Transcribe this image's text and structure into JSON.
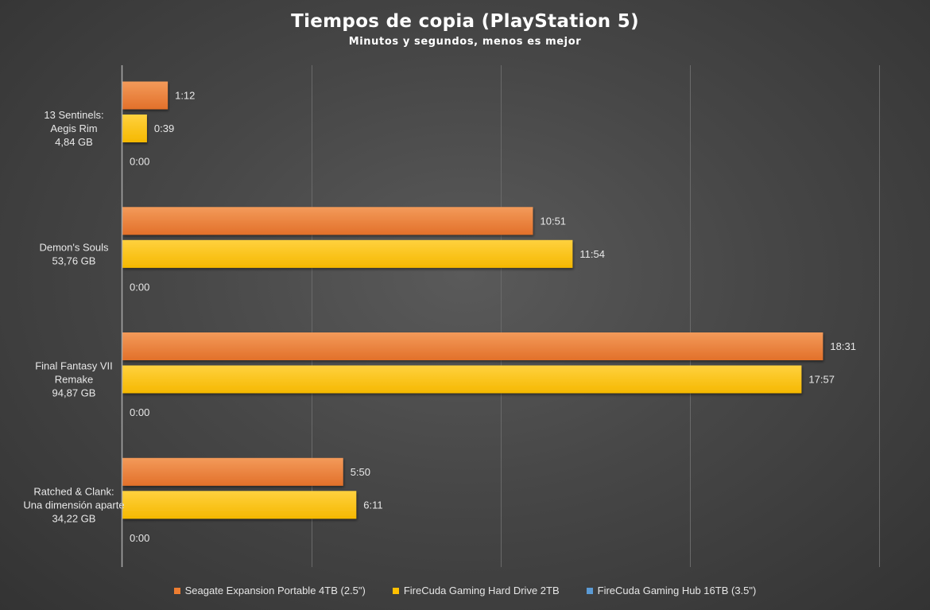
{
  "chart_data": {
    "type": "bar",
    "orientation": "horizontal",
    "title": "Tiempos de copia (PlayStation 5)",
    "subtitle": "Minutos y segundos, menos es mejor",
    "value_unit": "seconds",
    "categories": [
      [
        "13 Sentinels:",
        "Aegis Rim",
        "4,84 GB"
      ],
      [
        "Demon's Souls",
        "53,76 GB"
      ],
      [
        "Final Fantasy VII",
        "Remake",
        "94,87 GB"
      ],
      [
        "Ratched & Clank:",
        "Una dimensión aparte",
        "34,22 GB"
      ]
    ],
    "series": [
      {
        "name": "Seagate Expansion Portable 4TB (2.5\")",
        "color": "#ed7d31",
        "values": [
          72,
          651,
          1111,
          350
        ],
        "labels": [
          "1:12",
          "10:51",
          "18:31",
          "5:50"
        ]
      },
      {
        "name": "FireCuda Gaming Hard Drive 2TB",
        "color": "#ffc000",
        "values": [
          39,
          714,
          1077,
          371
        ],
        "labels": [
          "0:39",
          "11:54",
          "17:57",
          "6:11"
        ]
      },
      {
        "name": "FireCuda Gaming Hub 16TB (3.5\")",
        "color": "#5b9bd5",
        "values": [
          0,
          0,
          0,
          0
        ],
        "labels": [
          "0:00",
          "0:00",
          "0:00",
          "0:00"
        ]
      }
    ],
    "xlim": [
      0,
      1200
    ],
    "x_gridlines": [
      300,
      600,
      900,
      1200
    ],
    "grid": true,
    "legend_position": "bottom"
  }
}
